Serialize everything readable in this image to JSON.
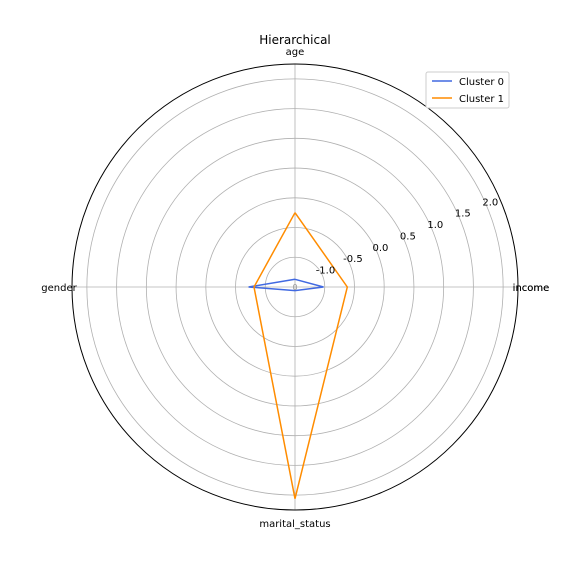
{
  "chart_data": {
    "type": "radar",
    "title": "Hierarchical",
    "categories": [
      "age",
      "income",
      "marital_status",
      "gender"
    ],
    "extra_tick_labels": [
      "income"
    ],
    "radial_ticks": [
      "-1.0",
      "-0.5",
      "0.0",
      "0.5",
      "1.0",
      "1.5",
      "2.0"
    ],
    "radial_tick_values": [
      -1.0,
      -0.5,
      0.0,
      0.5,
      1.0,
      1.5,
      2.0
    ],
    "radial_range": [
      -1.5,
      2.25
    ],
    "center_label": "0",
    "grid": true,
    "legend_position": "upper-right",
    "series": [
      {
        "name": "Cluster 0",
        "color": "#4169e1",
        "values": [
          -1.37,
          -1.02,
          -1.44,
          -0.72
        ]
      },
      {
        "name": "Cluster 1",
        "color": "#ff8c00",
        "values": [
          -0.25,
          -0.62,
          2.06,
          -0.81
        ]
      }
    ]
  }
}
